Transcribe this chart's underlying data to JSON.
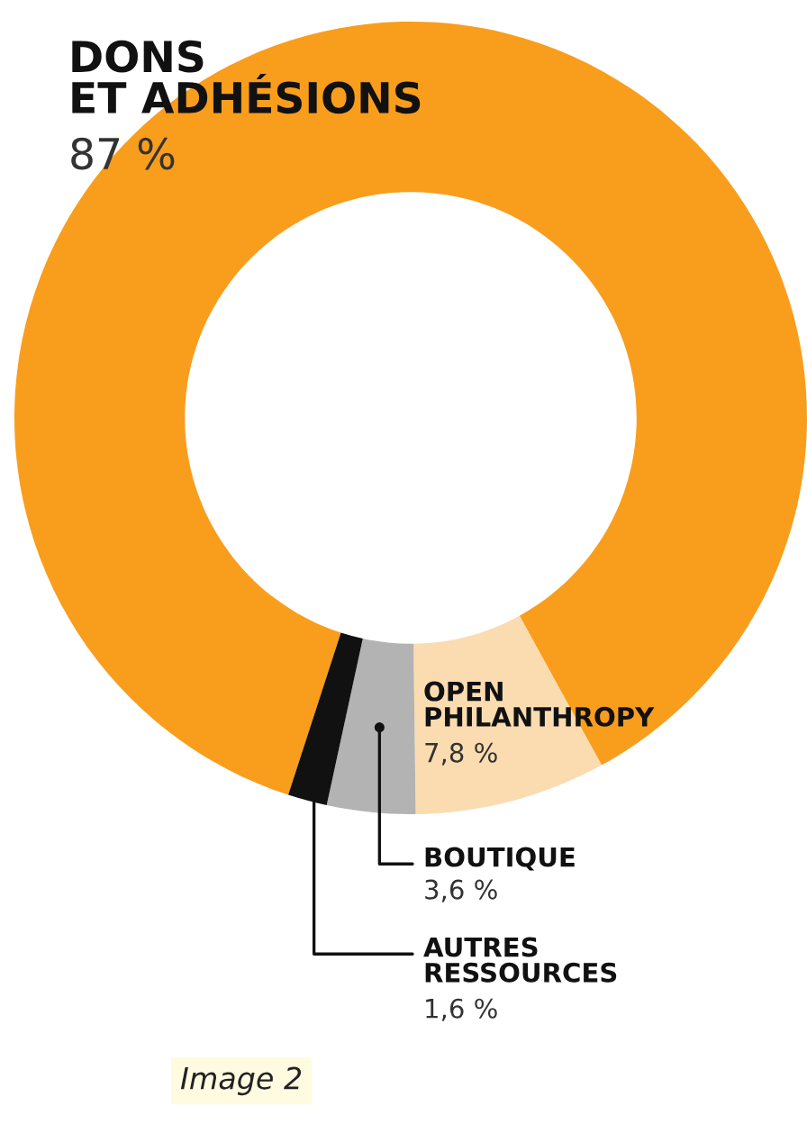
{
  "chart_data": {
    "type": "donut",
    "categories": [
      "DONS\nET ADHÉSIONS",
      "OPEN\nPHILANTHROPY",
      "BOUTIQUE",
      "AUTRES\nRESSOURCES"
    ],
    "values": [
      87,
      7.8,
      3.6,
      1.6
    ],
    "value_labels": [
      "87 %",
      "7,8 %",
      "3,6 %",
      "1,6 %"
    ],
    "colors": [
      "#f99d1c",
      "#fbdcb0",
      "#b3b3b3",
      "#111111"
    ],
    "annotations": [
      "Image 2"
    ]
  }
}
